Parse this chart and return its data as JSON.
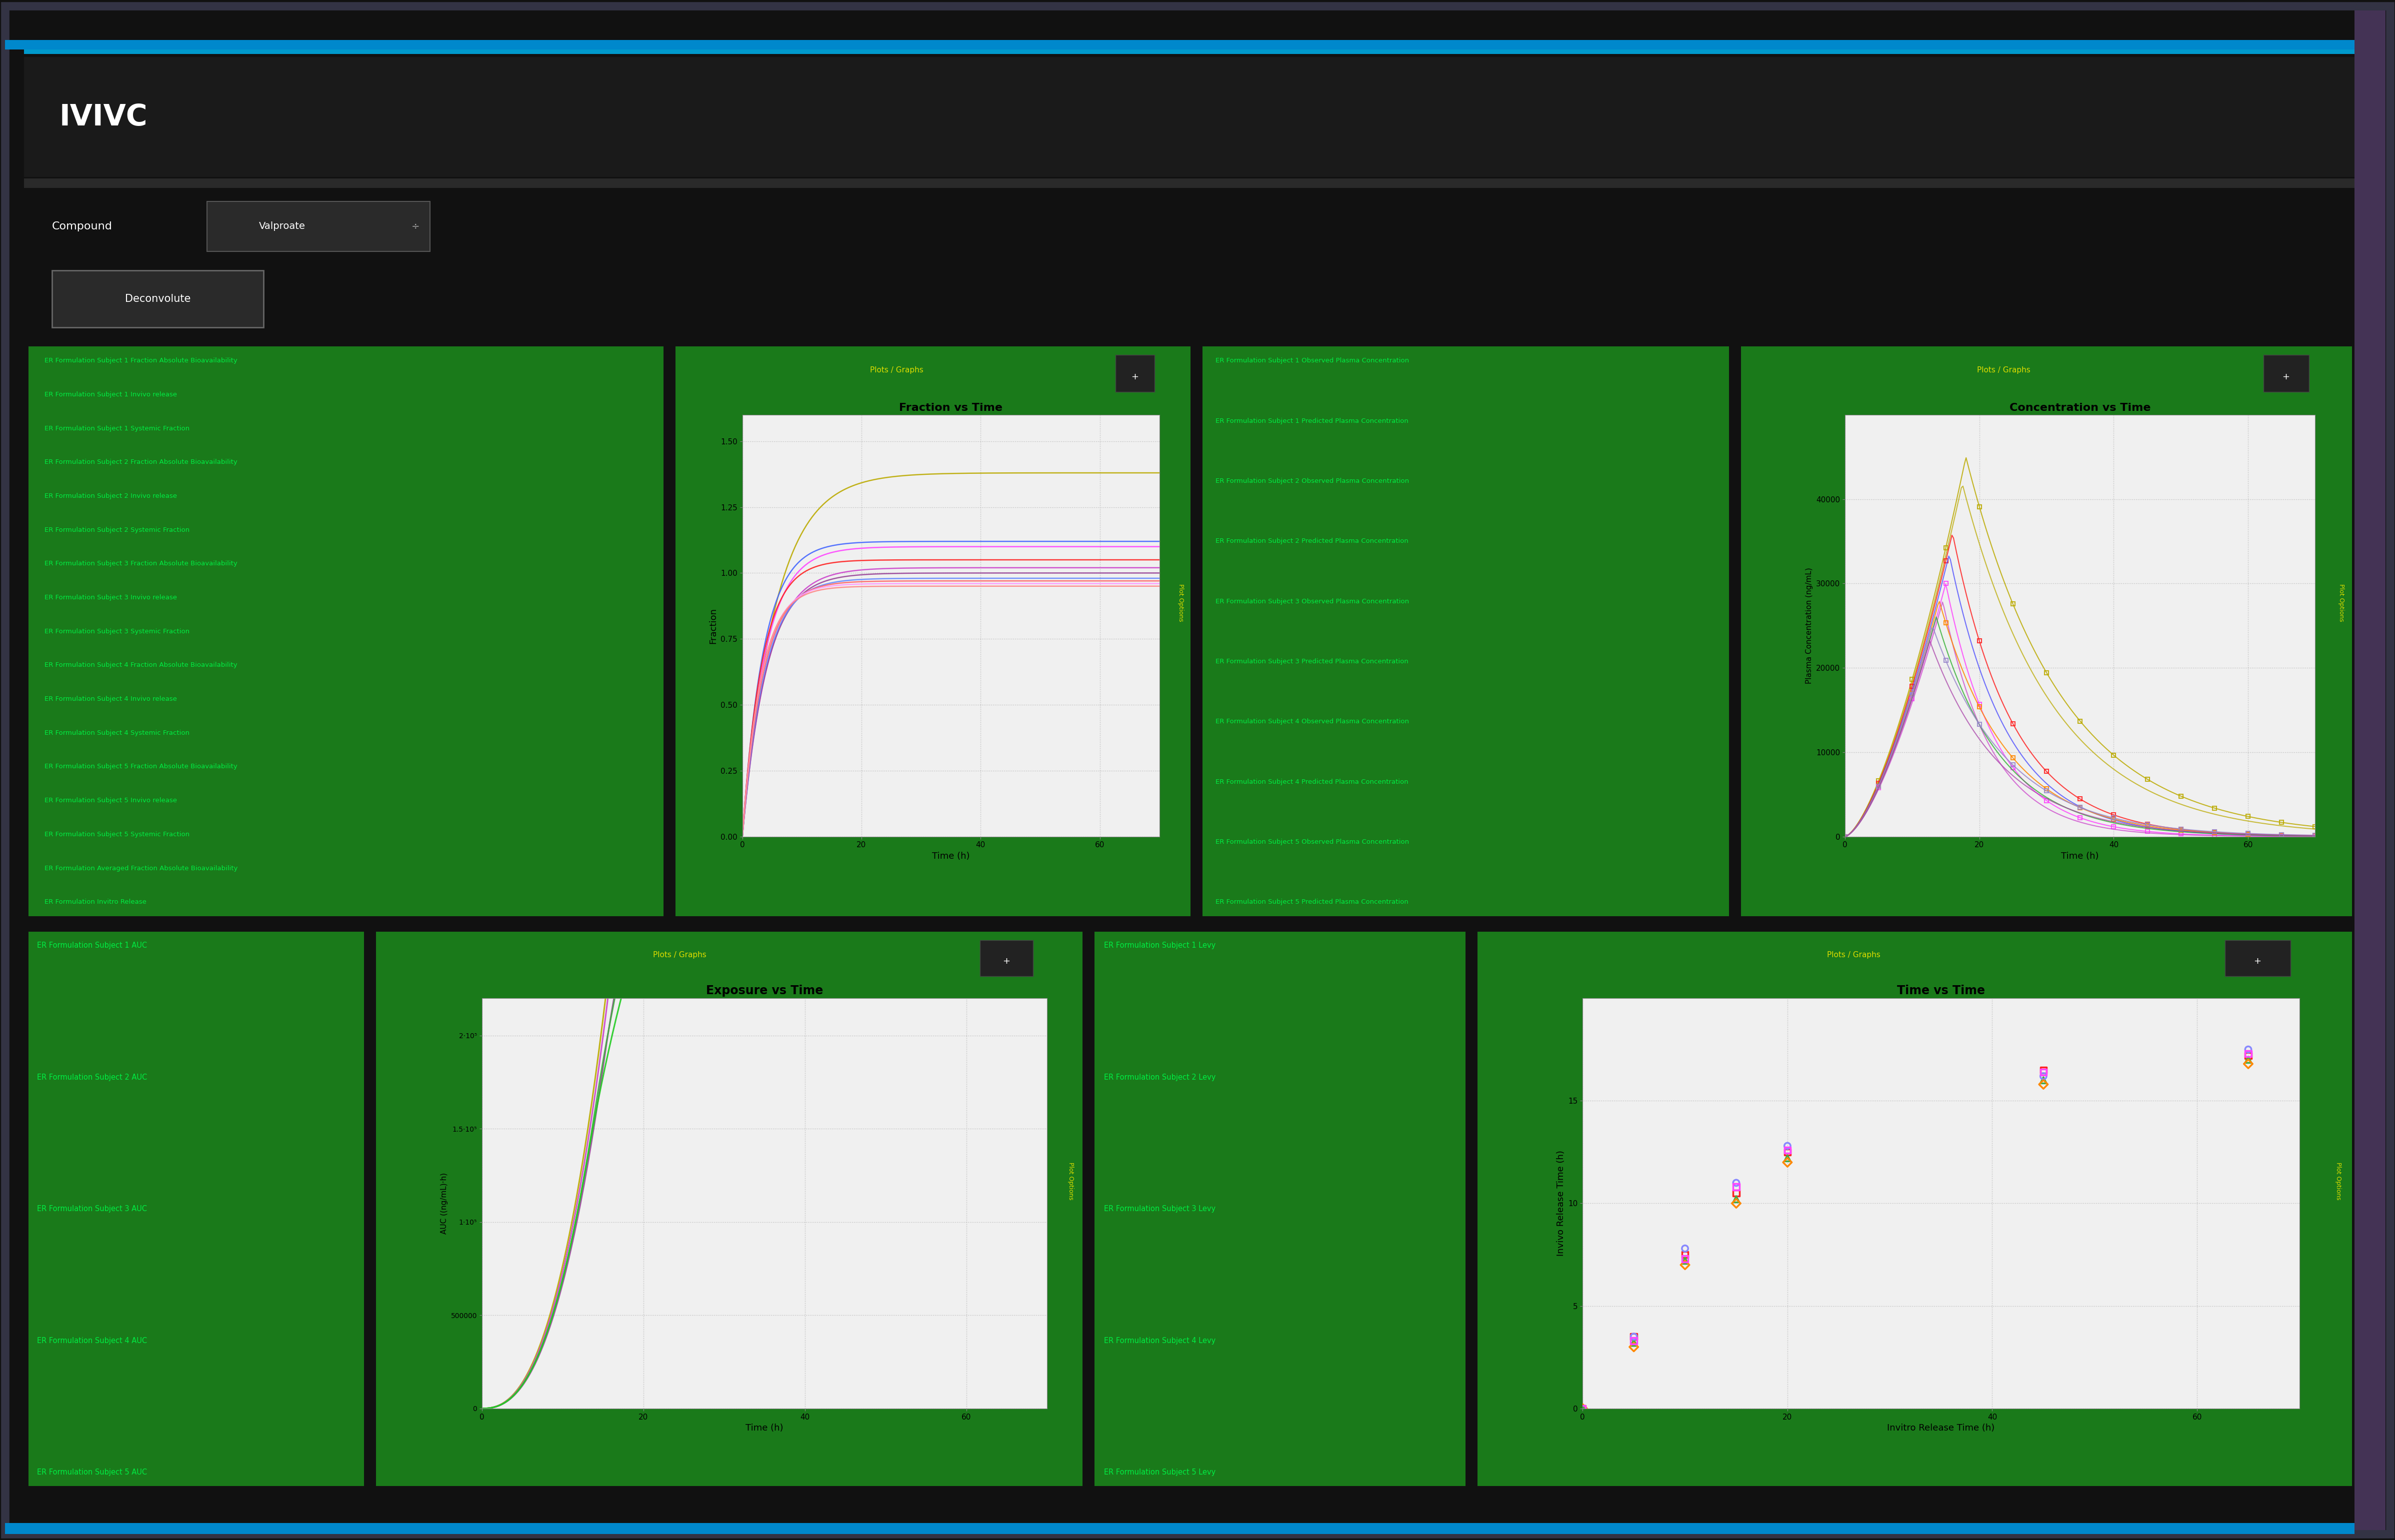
{
  "title": "IVIVC",
  "compound_label": "Compound",
  "compound_value": "Valproate",
  "button_label": "Deconvolute",
  "bg_color": "#111111",
  "green_bg": "#1a7a1a",
  "chart_bg": "#f0f0f0",
  "left_panel1_items": [
    "ER Formulation Subject 1 Fraction Absolute Bioavailability",
    "ER Formulation Subject 1 Invivo release",
    "ER Formulation Subject 1 Systemic Fraction",
    "ER Formulation Subject 2 Fraction Absolute Bioavailability",
    "ER Formulation Subject 2 Invivo release",
    "ER Formulation Subject 2 Systemic Fraction",
    "ER Formulation Subject 3 Fraction Absolute Bioavailability",
    "ER Formulation Subject 3 Invivo release",
    "ER Formulation Subject 3 Systemic Fraction",
    "ER Formulation Subject 4 Fraction Absolute Bioavailability",
    "ER Formulation Subject 4 Invivo release",
    "ER Formulation Subject 4 Systemic Fraction",
    "ER Formulation Subject 5 Fraction Absolute Bioavailability",
    "ER Formulation Subject 5 Invivo release",
    "ER Formulation Subject 5 Systemic Fraction",
    "ER Formulation Averaged Fraction Absolute Bioavailability",
    "ER Formulation Invitro Release"
  ],
  "right_panel1_items": [
    "ER Formulation Subject 1 Observed Plasma Concentration",
    "ER Formulation Subject 1 Predicted Plasma Concentration",
    "ER Formulation Subject 2 Observed Plasma Concentration",
    "ER Formulation Subject 2 Predicted Plasma Concentration",
    "ER Formulation Subject 3 Observed Plasma Concentration",
    "ER Formulation Subject 3 Predicted Plasma Concentration",
    "ER Formulation Subject 4 Observed Plasma Concentration",
    "ER Formulation Subject 4 Predicted Plasma Concentration",
    "ER Formulation Subject 5 Observed Plasma Concentration",
    "ER Formulation Subject 5 Predicted Plasma Concentration"
  ],
  "left_panel2_items": [
    "ER Formulation Subject 1 AUC",
    "ER Formulation Subject 2 AUC",
    "ER Formulation Subject 3 AUC",
    "ER Formulation Subject 4 AUC",
    "ER Formulation Subject 5 AUC"
  ],
  "right_panel2_items": [
    "ER Formulation Subject 1 Levy",
    "ER Formulation Subject 2 Levy",
    "ER Formulation Subject 3 Levy",
    "ER Formulation Subject 4 Levy",
    "ER Formulation Subject 5 Levy"
  ],
  "plot1_title": "Fraction vs Time",
  "plot1_xlabel": "Time (h)",
  "plot1_ylabel": "Fraction",
  "plot1_header": "Plots / Graphs",
  "plot2_title": "Concentration vs Time",
  "plot2_xlabel": "Time (h)",
  "plot2_ylabel": "Plasma Concentration (ng/mL)",
  "plot2_header": "Plots / Graphs",
  "plot3_title": "Exposure vs Time",
  "plot3_xlabel": "Time (h)",
  "plot3_ylabel": "AUC ((ng/mL)·h)",
  "plot3_header": "Plots / Graphs",
  "plot4_title": "Time vs Time",
  "plot4_xlabel": "Invitro Release Time (h)",
  "plot4_ylabel": "Invivo Release Time (h)",
  "plot4_header": "Plots / Graphs",
  "frac_colors": [
    "#bbaa00",
    "#4466ff",
    "#ff44ff",
    "#ff2222",
    "#cc44cc",
    "#994499",
    "#6688ff",
    "#ff6666",
    "#ff99ff",
    "#ff8888"
  ],
  "conc_obs_colors": [
    "#bbaa00",
    "#ff2222",
    "#ff44ff",
    "#ff8800",
    "#9988cc"
  ],
  "conc_pred_colors": [
    "#bbaa00",
    "#4444ff",
    "#cc44cc",
    "#22aa22",
    "#aa44aa"
  ],
  "exp_colors": [
    "#bbaa00",
    "#cc44cc",
    "#994499",
    "#44aa44",
    "#22cc22"
  ],
  "levy_colors": [
    "#ff2222",
    "#44aa44",
    "#8888ff",
    "#ff8800",
    "#ff44ff"
  ],
  "text_color": "#00ee44",
  "header_color": "#dddd00",
  "plot_options_color": "#dddd00"
}
